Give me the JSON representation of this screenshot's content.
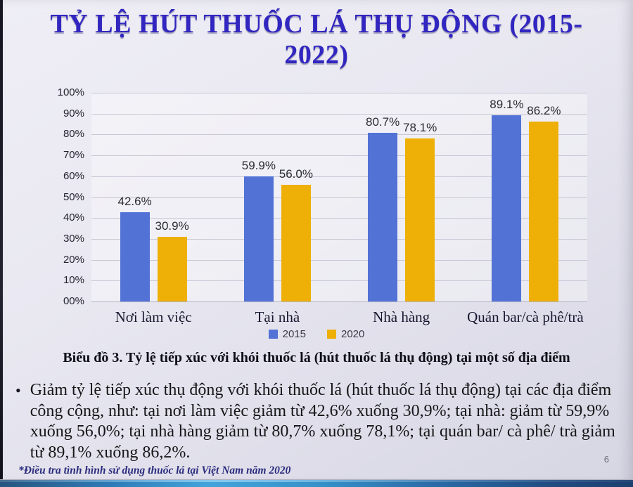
{
  "slide": {
    "title": "TỶ LỆ HÚT THUỐC LÁ THỤ ĐỘNG (2015-2022)",
    "caption": "Biểu đồ 3. Tỷ lệ tiếp xúc với khói thuốc lá (hút thuốc lá thụ động) tại một số địa điểm",
    "bullet_text": "Giảm tỷ lệ tiếp xúc thụ động với khói thuốc lá (hút thuốc lá thụ động) tại các địa điểm công cộng, như: tại nơi làm việc giảm từ 42,6% xuống 30,9%; tại nhà: giảm từ 59,9% xuống 56,0%; tại nhà hàng giảm từ 80,7% xuống 78,1%; tại quán bar/ cà phê/ trà giảm từ 89,1% xuống 86,2%.",
    "bullet_marker": "•",
    "footnote": "*Điều tra tình hình sử dụng thuốc lá tại Việt Nam năm 2020",
    "page_number": "6"
  },
  "chart_data": {
    "type": "bar",
    "categories": [
      "Nơi làm việc",
      "Tại nhà",
      "Nhà hàng",
      "Quán bar/cà phê/trà"
    ],
    "series": [
      {
        "name": "2015",
        "color": "#5272d6",
        "values": [
          42.6,
          59.9,
          80.7,
          89.1
        ],
        "labels": [
          "42.6%",
          "59.9%",
          "80.7%",
          "89.1%"
        ]
      },
      {
        "name": "2020",
        "color": "#eeb007",
        "values": [
          30.9,
          56.0,
          78.1,
          86.2
        ],
        "labels": [
          "30.9%",
          "56.0%",
          "78.1%",
          "86.2%"
        ]
      }
    ],
    "y_ticks": [
      "100%",
      "90%",
      "80%",
      "70%",
      "60%",
      "50%",
      "40%",
      "30%",
      "20%",
      "10%",
      "00%"
    ],
    "ylim": [
      0,
      100
    ],
    "grid": true,
    "legend_position": "bottom"
  },
  "colors": {
    "title_text": "#3226c0",
    "bar_2015": "#5272d6",
    "bar_2020": "#eeb007",
    "footnote_text": "#2c2c7e",
    "bottom_bar_blue": "#2f7cb8",
    "bottom_bar_cyan": "#42a4da"
  }
}
